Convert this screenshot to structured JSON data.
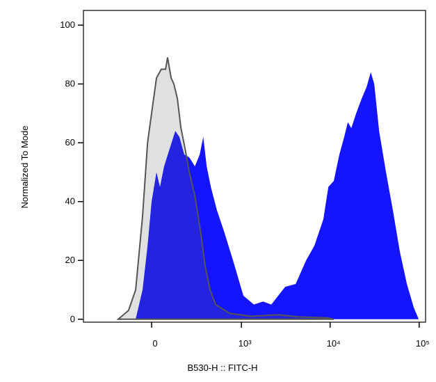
{
  "chart_data": {
    "type": "area",
    "x_label": "B530-H :: FITC-H",
    "y_label": "Normalized To Mode",
    "xscale": "biexponential",
    "xlim": [
      -560,
      118000
    ],
    "xticks": [
      0,
      {
        "value": 1000,
        "label": "10³"
      },
      {
        "value": 10000,
        "label": "10⁴"
      },
      {
        "value": 100000,
        "label": "10⁵"
      }
    ],
    "ylim": [
      -1,
      105
    ],
    "yticks": [
      0,
      20,
      40,
      60,
      80,
      100
    ],
    "series": [
      {
        "color": "#1414ff",
        "x": [
          -84,
          -47,
          -21,
          0,
          25,
          43,
          65,
          96,
          129,
          155,
          188,
          225,
          271,
          315,
          350,
          387,
          436,
          518,
          627,
          800,
          1053,
          1386,
          1756,
          2182,
          2610,
          3126,
          4100,
          5370,
          6650,
          8400,
          9550,
          10990,
          12700,
          14400,
          15800,
          17300,
          19600,
          22600,
          25700,
          28600,
          31300,
          35500,
          42400,
          50700,
          60700,
          72700,
          87000,
          98800
        ],
        "values": [
          0,
          10,
          25,
          40,
          50,
          45,
          52,
          58,
          64,
          62,
          56,
          55,
          52,
          56,
          62,
          52,
          45,
          37,
          30,
          20,
          8,
          5,
          6,
          5,
          8,
          11,
          12,
          20,
          25,
          34,
          45,
          47,
          56,
          62,
          67,
          65,
          70,
          75,
          79,
          84,
          80,
          64,
          50,
          37,
          23,
          12,
          4,
          0
        ]
      },
      {
        "color": "#555555",
        "x": [
          -193,
          -125,
          -84,
          -47,
          -21,
          0,
          25,
          50,
          73,
          84,
          104,
          120,
          142,
          165,
          193,
          225,
          271,
          322,
          371,
          427,
          498,
          729,
          1265,
          2610,
          4475,
          9200,
          11000
        ],
        "values": [
          0,
          3,
          10,
          35,
          60,
          70,
          82,
          85,
          85,
          89,
          82,
          80,
          75,
          65,
          58,
          50,
          42,
          30,
          18,
          10,
          5,
          2,
          1,
          1.5,
          0.8,
          0.5,
          0
        ]
      }
    ]
  }
}
